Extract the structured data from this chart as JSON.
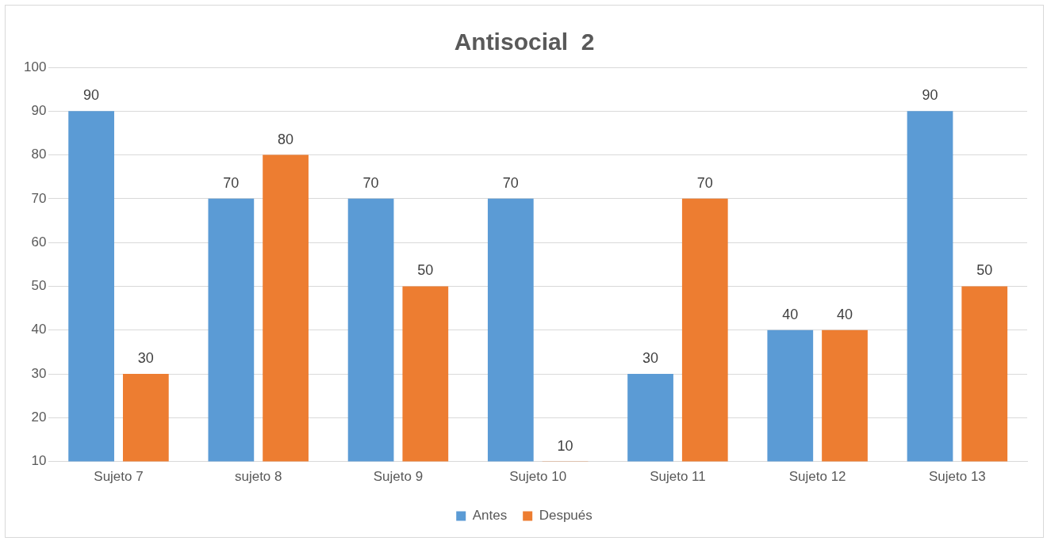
{
  "chart_data": {
    "type": "bar",
    "title": "Antisocial  2",
    "categories": [
      "Sujeto 7",
      "sujeto 8",
      "Sujeto 9",
      "Sujeto 10",
      "Sujeto 11",
      "Sujeto 12",
      "Sujeto 13"
    ],
    "series": [
      {
        "name": "Antes",
        "color": "#5b9bd5",
        "values": [
          90,
          70,
          70,
          70,
          30,
          40,
          90
        ]
      },
      {
        "name": "Después",
        "color": "#ed7d31",
        "values": [
          30,
          80,
          50,
          10,
          70,
          40,
          50
        ]
      }
    ],
    "ylim": [
      10,
      100
    ],
    "yticks": [
      10,
      20,
      30,
      40,
      50,
      60,
      70,
      80,
      90,
      100
    ],
    "grid": "y",
    "legend": "bottom",
    "data_labels": true
  }
}
